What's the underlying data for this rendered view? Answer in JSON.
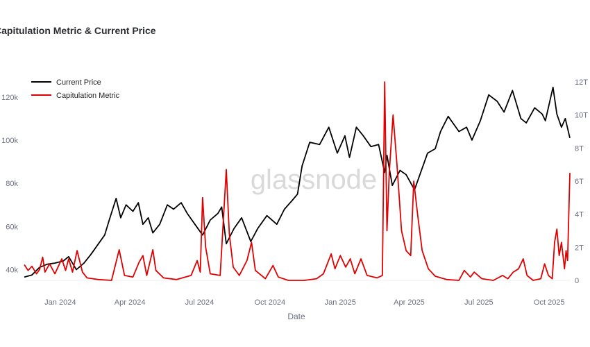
{
  "chart_data": {
    "type": "line",
    "title": "Capitulation Metric & Current Price",
    "xlabel": "Date",
    "watermark": "glassnode",
    "x_range": [
      "2023-11-15",
      "2025-10-28"
    ],
    "x_ticks": [
      {
        "label": "Jan 2024",
        "date": "2024-01-01"
      },
      {
        "label": "Apr 2024",
        "date": "2024-04-01"
      },
      {
        "label": "Jul 2024",
        "date": "2024-07-01"
      },
      {
        "label": "Oct 2024",
        "date": "2024-10-01"
      },
      {
        "label": "Jan 2025",
        "date": "2025-01-01"
      },
      {
        "label": "Apr 2025",
        "date": "2025-04-01"
      },
      {
        "label": "Jul 2025",
        "date": "2025-07-01"
      },
      {
        "label": "Oct 2025",
        "date": "2025-10-01"
      }
    ],
    "y_left": {
      "range": [
        35000,
        127000
      ],
      "ticks": [
        {
          "label": "40k",
          "value": 40000
        },
        {
          "label": "60k",
          "value": 60000
        },
        {
          "label": "80k",
          "value": 80000
        },
        {
          "label": "100k",
          "value": 100000
        },
        {
          "label": "120k",
          "value": 120000
        }
      ]
    },
    "y_right": {
      "range": [
        0,
        12000000000000
      ],
      "ticks": [
        {
          "label": "0",
          "value": 0
        },
        {
          "label": "2T",
          "value": 2000000000000
        },
        {
          "label": "4T",
          "value": 4000000000000
        },
        {
          "label": "6T",
          "value": 6000000000000
        },
        {
          "label": "8T",
          "value": 8000000000000
        },
        {
          "label": "10T",
          "value": 10000000000000
        },
        {
          "label": "12T",
          "value": 12000000000000
        }
      ]
    },
    "legend_position": "top-left",
    "grid": false,
    "series": [
      {
        "name": "Current Price",
        "color": "#000000",
        "axis": "left",
        "points": [
          [
            "2023-11-15",
            36500
          ],
          [
            "2023-11-25",
            37500
          ],
          [
            "2023-12-05",
            41000
          ],
          [
            "2023-12-15",
            42500
          ],
          [
            "2023-12-25",
            43000
          ],
          [
            "2024-01-05",
            44000
          ],
          [
            "2024-01-12",
            46000
          ],
          [
            "2024-01-22",
            40000
          ],
          [
            "2024-02-01",
            43000
          ],
          [
            "2024-02-10",
            47000
          ],
          [
            "2024-02-20",
            52000
          ],
          [
            "2024-02-28",
            56000
          ],
          [
            "2024-03-05",
            63000
          ],
          [
            "2024-03-14",
            73000
          ],
          [
            "2024-03-20",
            64000
          ],
          [
            "2024-03-27",
            70000
          ],
          [
            "2024-04-05",
            67000
          ],
          [
            "2024-04-12",
            71000
          ],
          [
            "2024-04-18",
            61000
          ],
          [
            "2024-04-25",
            64000
          ],
          [
            "2024-05-01",
            57000
          ],
          [
            "2024-05-10",
            61000
          ],
          [
            "2024-05-20",
            70000
          ],
          [
            "2024-05-28",
            68000
          ],
          [
            "2024-06-07",
            71000
          ],
          [
            "2024-06-15",
            66000
          ],
          [
            "2024-06-25",
            61000
          ],
          [
            "2024-07-05",
            56000
          ],
          [
            "2024-07-15",
            63000
          ],
          [
            "2024-07-25",
            66000
          ],
          [
            "2024-07-30",
            69000
          ],
          [
            "2024-08-05",
            52000
          ],
          [
            "2024-08-15",
            59000
          ],
          [
            "2024-08-25",
            64000
          ],
          [
            "2024-09-06",
            53000
          ],
          [
            "2024-09-15",
            59000
          ],
          [
            "2024-09-27",
            65000
          ],
          [
            "2024-10-10",
            61000
          ],
          [
            "2024-10-20",
            68000
          ],
          [
            "2024-10-30",
            72000
          ],
          [
            "2024-11-06",
            75000
          ],
          [
            "2024-11-12",
            88000
          ],
          [
            "2024-11-22",
            99000
          ],
          [
            "2024-12-05",
            98000
          ],
          [
            "2024-12-17",
            106000
          ],
          [
            "2024-12-28",
            94000
          ],
          [
            "2025-01-07",
            102000
          ],
          [
            "2025-01-13",
            92000
          ],
          [
            "2025-01-22",
            106000
          ],
          [
            "2025-01-31",
            102000
          ],
          [
            "2025-02-10",
            97000
          ],
          [
            "2025-02-20",
            98000
          ],
          [
            "2025-02-28",
            85000
          ],
          [
            "2025-03-03",
            93000
          ],
          [
            "2025-03-10",
            79000
          ],
          [
            "2025-03-20",
            86000
          ],
          [
            "2025-03-28",
            84000
          ],
          [
            "2025-04-08",
            77000
          ],
          [
            "2025-04-15",
            84000
          ],
          [
            "2025-04-25",
            94000
          ],
          [
            "2025-05-05",
            96000
          ],
          [
            "2025-05-12",
            104000
          ],
          [
            "2025-05-22",
            111000
          ],
          [
            "2025-06-05",
            104000
          ],
          [
            "2025-06-15",
            106000
          ],
          [
            "2025-06-22",
            100000
          ],
          [
            "2025-07-03",
            109000
          ],
          [
            "2025-07-14",
            121000
          ],
          [
            "2025-07-25",
            118000
          ],
          [
            "2025-08-03",
            113000
          ],
          [
            "2025-08-14",
            123000
          ],
          [
            "2025-08-25",
            110000
          ],
          [
            "2025-09-01",
            108000
          ],
          [
            "2025-09-12",
            115000
          ],
          [
            "2025-09-22",
            112000
          ],
          [
            "2025-09-26",
            109000
          ],
          [
            "2025-10-06",
            124500
          ],
          [
            "2025-10-11",
            112000
          ],
          [
            "2025-10-17",
            106000
          ],
          [
            "2025-10-22",
            110000
          ],
          [
            "2025-10-28",
            101000
          ]
        ]
      },
      {
        "name": "Capitulation Metric",
        "color": "#e00000",
        "axis": "right",
        "points": [
          [
            "2023-11-15",
            950000000000
          ],
          [
            "2023-11-20",
            600000000000
          ],
          [
            "2023-11-25",
            850000000000
          ],
          [
            "2023-12-01",
            400000000000
          ],
          [
            "2023-12-05",
            650000000000
          ],
          [
            "2023-12-09",
            1400000000000
          ],
          [
            "2023-12-12",
            500000000000
          ],
          [
            "2023-12-18",
            1000000000000
          ],
          [
            "2023-12-25",
            400000000000
          ],
          [
            "2024-01-03",
            1300000000000
          ],
          [
            "2024-01-08",
            600000000000
          ],
          [
            "2024-01-12",
            1300000000000
          ],
          [
            "2024-01-17",
            500000000000
          ],
          [
            "2024-01-23",
            1800000000000
          ],
          [
            "2024-01-30",
            500000000000
          ],
          [
            "2024-02-05",
            150000000000
          ],
          [
            "2024-02-20",
            50000000000
          ],
          [
            "2024-03-08",
            0
          ],
          [
            "2024-03-18",
            1850000000000
          ],
          [
            "2024-03-25",
            300000000000
          ],
          [
            "2024-04-05",
            200000000000
          ],
          [
            "2024-04-13",
            1100000000000
          ],
          [
            "2024-04-18",
            1500000000000
          ],
          [
            "2024-04-23",
            300000000000
          ],
          [
            "2024-05-01",
            1850000000000
          ],
          [
            "2024-05-05",
            600000000000
          ],
          [
            "2024-05-15",
            150000000000
          ],
          [
            "2024-06-01",
            50000000000
          ],
          [
            "2024-06-20",
            300000000000
          ],
          [
            "2024-06-28",
            1200000000000
          ],
          [
            "2024-07-02",
            500000000000
          ],
          [
            "2024-07-05",
            5000000000000
          ],
          [
            "2024-07-09",
            2000000000000
          ],
          [
            "2024-07-15",
            400000000000
          ],
          [
            "2024-07-28",
            300000000000
          ],
          [
            "2024-08-05",
            6700000000000
          ],
          [
            "2024-08-09",
            2800000000000
          ],
          [
            "2024-08-14",
            800000000000
          ],
          [
            "2024-08-22",
            300000000000
          ],
          [
            "2024-09-01",
            1200000000000
          ],
          [
            "2024-09-07",
            2300000000000
          ],
          [
            "2024-09-12",
            600000000000
          ],
          [
            "2024-09-25",
            100000000000
          ],
          [
            "2024-10-05",
            900000000000
          ],
          [
            "2024-10-12",
            200000000000
          ],
          [
            "2024-10-25",
            0
          ],
          [
            "2024-11-15",
            0
          ],
          [
            "2024-12-01",
            100000000000
          ],
          [
            "2024-12-10",
            400000000000
          ],
          [
            "2024-12-20",
            1600000000000
          ],
          [
            "2024-12-25",
            700000000000
          ],
          [
            "2025-01-01",
            1500000000000
          ],
          [
            "2025-01-08",
            800000000000
          ],
          [
            "2025-01-14",
            1300000000000
          ],
          [
            "2025-01-20",
            400000000000
          ],
          [
            "2025-01-28",
            1300000000000
          ],
          [
            "2025-02-05",
            300000000000
          ],
          [
            "2025-02-18",
            150000000000
          ],
          [
            "2025-02-25",
            300000000000
          ],
          [
            "2025-02-28",
            12000000000000
          ],
          [
            "2025-03-03",
            3000000000000
          ],
          [
            "2025-03-06",
            6500000000000
          ],
          [
            "2025-03-11",
            10000000000000
          ],
          [
            "2025-03-16",
            7000000000000
          ],
          [
            "2025-03-22",
            3000000000000
          ],
          [
            "2025-03-28",
            1800000000000
          ],
          [
            "2025-04-03",
            1500000000000
          ],
          [
            "2025-04-07",
            6000000000000
          ],
          [
            "2025-04-12",
            4000000000000
          ],
          [
            "2025-04-18",
            1800000000000
          ],
          [
            "2025-04-26",
            700000000000
          ],
          [
            "2025-05-05",
            250000000000
          ],
          [
            "2025-05-20",
            50000000000
          ],
          [
            "2025-06-05",
            0
          ],
          [
            "2025-06-12",
            600000000000
          ],
          [
            "2025-06-20",
            200000000000
          ],
          [
            "2025-06-25",
            500000000000
          ],
          [
            "2025-07-05",
            100000000000
          ],
          [
            "2025-07-20",
            0
          ],
          [
            "2025-08-01",
            300000000000
          ],
          [
            "2025-08-08",
            100000000000
          ],
          [
            "2025-08-15",
            500000000000
          ],
          [
            "2025-08-22",
            700000000000
          ],
          [
            "2025-08-28",
            1300000000000
          ],
          [
            "2025-09-02",
            300000000000
          ],
          [
            "2025-09-10",
            0
          ],
          [
            "2025-09-20",
            100000000000
          ],
          [
            "2025-09-25",
            1000000000000
          ],
          [
            "2025-09-30",
            300000000000
          ],
          [
            "2025-10-05",
            100000000000
          ],
          [
            "2025-10-08",
            2300000000000
          ],
          [
            "2025-10-11",
            3100000000000
          ],
          [
            "2025-10-14",
            1500000000000
          ],
          [
            "2025-10-17",
            2300000000000
          ],
          [
            "2025-10-21",
            700000000000
          ],
          [
            "2025-10-23",
            1800000000000
          ],
          [
            "2025-10-25",
            1200000000000
          ],
          [
            "2025-10-28",
            6500000000000
          ]
        ]
      }
    ]
  }
}
